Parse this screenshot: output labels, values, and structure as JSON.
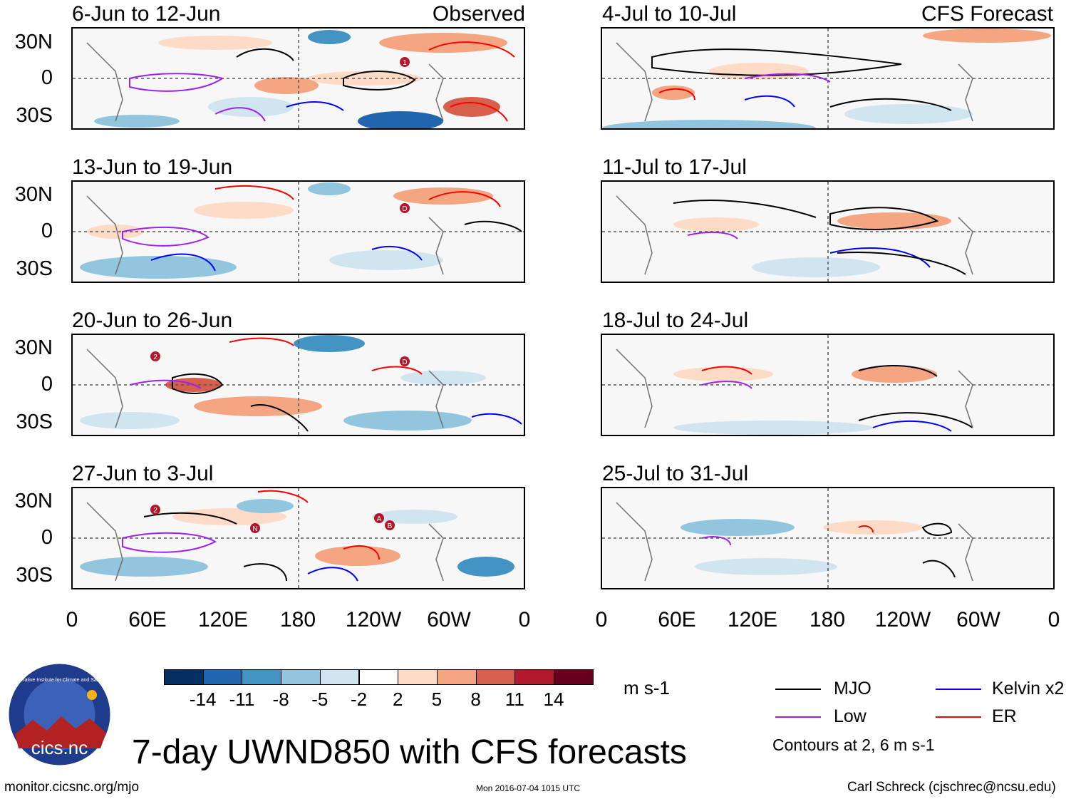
{
  "header": {
    "left_tag": "Observed",
    "right_tag": "CFS Forecast"
  },
  "panels_left": [
    {
      "title": "6-Jun to 12-Jun"
    },
    {
      "title": "13-Jun to 19-Jun"
    },
    {
      "title": "20-Jun to 26-Jun"
    },
    {
      "title": "27-Jun to 3-Jul"
    }
  ],
  "panels_right": [
    {
      "title": "4-Jul to 10-Jul"
    },
    {
      "title": "11-Jul to 17-Jul"
    },
    {
      "title": "18-Jul to 24-Jul"
    },
    {
      "title": "25-Jul to 31-Jul"
    }
  ],
  "lat_ticks": [
    "30N",
    "0",
    "30S"
  ],
  "lon_ticks": [
    "0",
    "60E",
    "120E",
    "180",
    "120W",
    "60W",
    "0"
  ],
  "storm_markers": {
    "p0": [
      "1"
    ],
    "p1": [
      "D"
    ],
    "p2": [
      "2",
      "D"
    ],
    "p3": [
      "2",
      "N",
      "A",
      "B"
    ]
  },
  "colorbar": {
    "colors": [
      "#053061",
      "#2166ac",
      "#4393c3",
      "#92c5de",
      "#d1e5f0",
      "#ffffff",
      "#fddbc7",
      "#f4a582",
      "#d6604d",
      "#b2182b",
      "#67001f"
    ],
    "labels": [
      "-14",
      "-11",
      "-8",
      "-5",
      "-2",
      "2",
      "5",
      "8",
      "11",
      "14"
    ],
    "units": "m s-1"
  },
  "legend": {
    "items": [
      {
        "label": "MJO",
        "color": "#000000"
      },
      {
        "label": "Kelvin x2",
        "color": "#0000ff"
      },
      {
        "label": "Low",
        "color": "#a020f0"
      },
      {
        "label": "ER",
        "color": "#ff0000"
      }
    ],
    "note": "Contours at 2, 6 m s-1"
  },
  "logo": {
    "text": "cics.nc",
    "ring_text": "Cooperative Institute for Climate and Satellites"
  },
  "main_title": "7-day UWND850 with CFS forecasts",
  "footer": {
    "left": "monitor.cicsnc.org/mjo",
    "center": "Mon 2016-07-04 1015 UTC",
    "right": "Carl Schreck (cjschrec@ncsu.edu)"
  }
}
